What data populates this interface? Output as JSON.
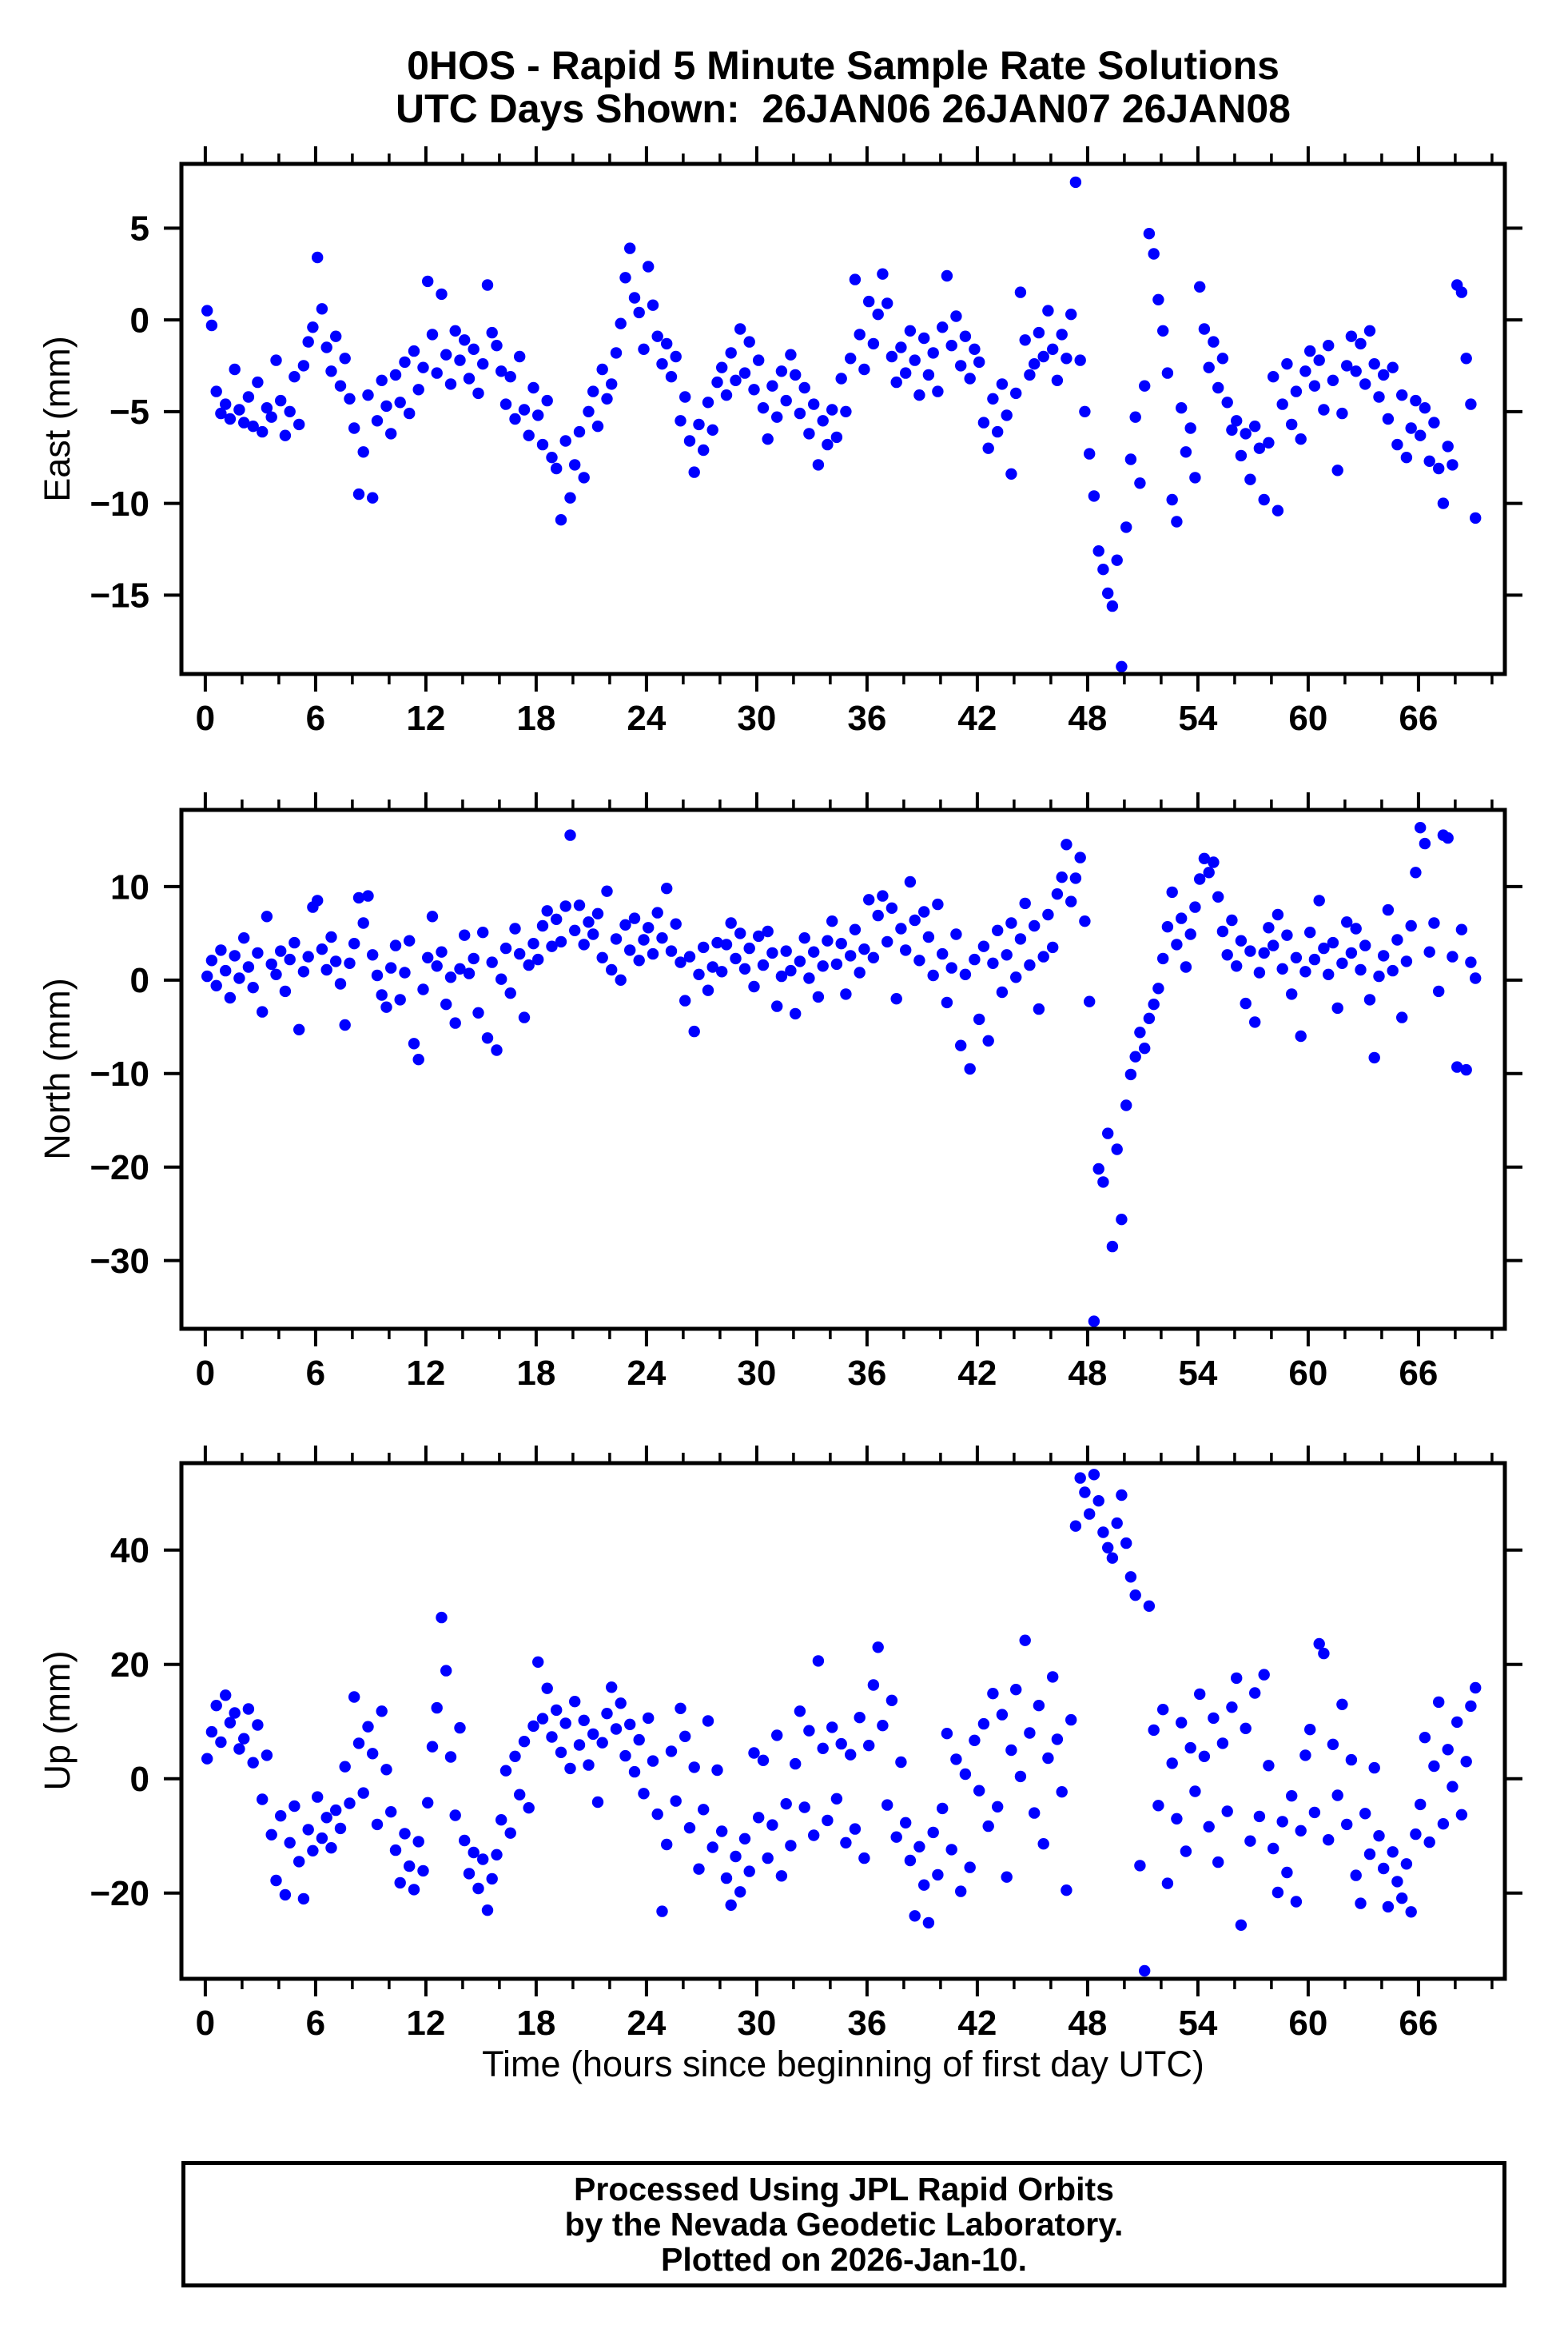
{
  "title": {
    "line1": "0HOS - Rapid 5 Minute Sample Rate Solutions",
    "line2": "UTC Days Shown:  26JAN06 26JAN07 26JAN08"
  },
  "footer": {
    "lines": [
      "Processed Using JPL Rapid Orbits",
      "by the Nevada Geodetic Laboratory.",
      "Plotted on 2026-Jan-10."
    ]
  },
  "style": {
    "marker_color": "#0000ff",
    "axis_color": "#000000",
    "background": "#ffffff"
  },
  "chart_data": {
    "type": "scatter",
    "xlabel": "Time (hours since beginning of first day UTC)",
    "xlim": [
      -1.3,
      70.7
    ],
    "x_major_ticks": [
      0,
      6,
      12,
      18,
      24,
      30,
      36,
      42,
      48,
      54,
      60,
      66
    ],
    "x_minor_step": 2,
    "grid": false,
    "legend": "none",
    "x_start": 0.1,
    "x_step": 0.25,
    "panels": [
      {
        "name": "east",
        "ylabel": "East (mm)",
        "ylim": [
          -19.3,
          8.5
        ],
        "yticks": [
          5,
          0,
          -5,
          -10,
          -15
        ],
        "y": [
          0.5,
          -0.3,
          -3.9,
          -5.1,
          -4.6,
          -5.4,
          -2.7,
          -4.9,
          -5.6,
          -4.2,
          -5.8,
          -3.4,
          -6.1,
          -4.8,
          -5.3,
          -2.2,
          -4.4,
          -6.3,
          -5.0,
          -3.1,
          -5.7,
          -2.5,
          -1.2,
          -0.4,
          3.4,
          0.6,
          -1.5,
          -2.8,
          -0.9,
          -3.6,
          -2.1,
          -4.3,
          -5.9,
          -9.5,
          -7.2,
          -4.1,
          -9.7,
          -5.5,
          -3.3,
          -4.7,
          -6.2,
          -3.0,
          -4.5,
          -2.3,
          -5.1,
          -1.7,
          -3.8,
          -2.6,
          2.1,
          -0.8,
          -2.9,
          1.4,
          -1.9,
          -3.5,
          -0.6,
          -2.2,
          -1.1,
          -3.2,
          -1.6,
          -4.0,
          -2.4,
          1.9,
          -0.7,
          -1.4,
          -2.8,
          -4.6,
          -3.1,
          -5.4,
          -2.0,
          -4.9,
          -6.3,
          -3.7,
          -5.2,
          -6.8,
          -4.4,
          -7.5,
          -8.1,
          -10.9,
          -6.6,
          -9.7,
          -7.9,
          -6.1,
          -8.6,
          -5.0,
          -3.9,
          -5.8,
          -2.7,
          -4.3,
          -3.5,
          -1.8,
          -0.2,
          2.3,
          3.9,
          1.2,
          0.4,
          -1.6,
          2.9,
          0.8,
          -0.9,
          -2.4,
          -1.3,
          -3.1,
          -2.0,
          -5.5,
          -4.2,
          -6.6,
          -8.3,
          -5.7,
          -7.1,
          -4.5,
          -6.0,
          -3.4,
          -2.6,
          -4.1,
          -1.8,
          -3.3,
          -0.5,
          -2.9,
          -1.2,
          -3.8,
          -2.2,
          -4.8,
          -6.5,
          -3.6,
          -5.3,
          -2.8,
          -4.4,
          -1.9,
          -3.0,
          -5.1,
          -3.7,
          -6.2,
          -4.6,
          -7.9,
          -5.5,
          -6.8,
          -4.9,
          -6.4,
          -3.2,
          -5.0,
          -2.1,
          2.2,
          -0.8,
          -2.7,
          1.0,
          -1.3,
          0.3,
          2.5,
          0.9,
          -2.0,
          -3.4,
          -1.5,
          -2.9,
          -0.6,
          -2.2,
          -4.1,
          -1.0,
          -3.0,
          -1.8,
          -3.9,
          -0.4,
          2.4,
          -1.4,
          0.2,
          -2.5,
          -0.9,
          -3.2,
          -1.6,
          -2.3,
          -5.6,
          -7.0,
          -4.3,
          -6.1,
          -3.5,
          -5.2,
          -8.4,
          -4.0,
          1.5,
          -1.1,
          -3.0,
          -2.4,
          -0.7,
          -2.0,
          0.5,
          -1.6,
          -3.3,
          -0.8,
          -2.1,
          0.3,
          7.5,
          -2.2,
          -5.0,
          -7.3,
          -9.6,
          -12.6,
          -13.6,
          -14.9,
          -15.6,
          -13.1,
          -18.9,
          -11.3,
          -7.6,
          -5.3,
          -8.9,
          -3.6,
          4.7,
          3.6,
          1.1,
          -0.6,
          -2.9,
          -9.8,
          -11.0,
          -4.8,
          -7.2,
          -5.9,
          -8.6,
          1.8,
          -0.5,
          -2.6,
          -1.2,
          -3.7,
          -2.1,
          -4.5,
          -6.0,
          -5.5,
          -7.4,
          -6.2,
          -8.7,
          -5.8,
          -7.0,
          -9.8,
          -6.7,
          -3.1,
          -10.4,
          -4.6,
          -2.4,
          -5.7,
          -3.9,
          -6.5,
          -2.8,
          -1.7,
          -3.6,
          -2.2,
          -4.9,
          -1.4,
          -3.3,
          -8.2,
          -5.1,
          -2.5,
          -0.9,
          -2.8,
          -1.3,
          -3.5,
          -0.6,
          -2.4,
          -4.2,
          -3.0,
          -5.4,
          -2.6,
          -6.8,
          -4.1,
          -7.5,
          -5.9,
          -4.4,
          -6.3,
          -4.8,
          -7.7,
          -5.6,
          -8.1,
          -10.0,
          -6.9,
          -7.9,
          1.9,
          1.5,
          -2.1,
          -4.6,
          -10.8
        ]
      },
      {
        "name": "north",
        "ylabel": "North (mm)",
        "ylim": [
          -37.3,
          18.2
        ],
        "yticks": [
          10,
          0,
          -10,
          -20,
          -30
        ],
        "y": [
          0.4,
          2.1,
          -0.6,
          3.2,
          1.0,
          -1.9,
          2.6,
          0.2,
          4.5,
          1.4,
          -0.8,
          2.9,
          -3.4,
          6.8,
          1.7,
          0.6,
          3.1,
          -1.2,
          2.2,
          4.0,
          -5.3,
          0.9,
          2.5,
          7.8,
          8.5,
          3.3,
          1.1,
          4.6,
          2.0,
          -0.4,
          -4.8,
          1.8,
          3.9,
          8.8,
          6.1,
          9.0,
          2.7,
          0.5,
          -1.6,
          -2.9,
          1.3,
          3.7,
          -2.1,
          0.8,
          4.2,
          -6.8,
          -8.5,
          -1.0,
          2.4,
          6.8,
          1.5,
          3.0,
          -2.6,
          0.3,
          -4.6,
          1.2,
          4.8,
          0.7,
          2.3,
          -3.5,
          5.1,
          -6.2,
          1.9,
          -7.5,
          0.1,
          3.4,
          -1.4,
          5.5,
          2.8,
          -4.0,
          1.6,
          3.9,
          2.2,
          5.8,
          7.4,
          3.6,
          6.5,
          4.1,
          7.9,
          15.5,
          5.3,
          8.0,
          3.8,
          6.2,
          4.9,
          7.1,
          2.4,
          9.5,
          1.1,
          4.4,
          0.0,
          5.9,
          3.2,
          6.6,
          2.1,
          4.3,
          5.6,
          2.8,
          7.2,
          4.5,
          9.8,
          3.1,
          6.0,
          1.9,
          -2.2,
          2.5,
          -5.5,
          0.6,
          3.5,
          -1.1,
          1.4,
          4.0,
          0.9,
          3.8,
          6.1,
          2.3,
          5.0,
          1.2,
          3.4,
          -0.7,
          4.7,
          1.6,
          5.2,
          2.9,
          -2.8,
          0.4,
          3.1,
          1.0,
          -3.6,
          2.0,
          4.5,
          0.2,
          3.0,
          -1.8,
          1.5,
          4.2,
          6.3,
          1.7,
          3.9,
          -1.5,
          2.6,
          5.4,
          0.8,
          3.3,
          8.6,
          2.4,
          6.9,
          9.0,
          4.1,
          7.7,
          -2.0,
          5.5,
          3.2,
          10.5,
          6.4,
          2.1,
          7.3,
          4.6,
          0.5,
          8.1,
          2.8,
          -2.4,
          1.3,
          4.9,
          -7.0,
          0.6,
          -9.5,
          2.2,
          -4.2,
          3.6,
          -6.5,
          1.8,
          5.3,
          -1.3,
          2.7,
          6.1,
          0.3,
          4.4,
          8.2,
          1.6,
          5.8,
          -3.1,
          2.5,
          7.0,
          3.5,
          9.2,
          11.0,
          14.5,
          8.4,
          10.9,
          13.1,
          6.3,
          -2.3,
          -36.5,
          -20.2,
          -21.6,
          -16.4,
          -28.5,
          -18.1,
          -25.6,
          -13.4,
          -10.1,
          -8.2,
          -5.6,
          -7.3,
          -4.1,
          -2.6,
          -0.9,
          2.3,
          5.7,
          9.4,
          3.8,
          6.6,
          1.4,
          4.9,
          7.8,
          10.8,
          13.0,
          11.5,
          12.6,
          8.9,
          5.2,
          2.7,
          6.4,
          1.5,
          4.2,
          -2.5,
          3.1,
          -4.5,
          0.8,
          2.9,
          5.6,
          3.7,
          7.0,
          1.2,
          4.8,
          -1.5,
          2.4,
          -6.0,
          0.9,
          5.1,
          2.2,
          8.5,
          3.4,
          0.6,
          4.0,
          -3.0,
          1.8,
          6.2,
          2.9,
          5.5,
          1.1,
          3.7,
          -2.1,
          -8.3,
          0.4,
          2.6,
          7.5,
          1.0,
          4.3,
          -4.0,
          2.0,
          5.8,
          11.5,
          16.3,
          14.6,
          3.0,
          6.1,
          -1.2,
          15.5,
          15.2,
          2.5,
          -9.3,
          5.4,
          -9.6,
          1.9,
          0.2
        ]
      },
      {
        "name": "up",
        "ylabel": "Up (mm)",
        "ylim": [
          -35.0,
          55.2
        ],
        "yticks": [
          40,
          20,
          0,
          -20
        ],
        "y": [
          3.5,
          8.2,
          12.8,
          6.4,
          14.6,
          9.8,
          11.5,
          5.2,
          7.0,
          12.2,
          2.8,
          9.4,
          -3.6,
          4.1,
          -9.8,
          -17.8,
          -6.5,
          -20.3,
          -11.2,
          -4.8,
          -14.5,
          -21.0,
          -8.9,
          -12.6,
          -3.2,
          -10.4,
          -6.8,
          -12.1,
          -5.5,
          -8.7,
          2.1,
          -4.3,
          14.3,
          6.2,
          -2.5,
          9.1,
          4.4,
          -8.0,
          11.8,
          1.6,
          -5.8,
          -12.5,
          -18.2,
          -9.6,
          -15.3,
          -19.4,
          -11.0,
          -16.1,
          -4.2,
          5.6,
          12.4,
          28.2,
          18.9,
          3.8,
          -6.4,
          8.9,
          -10.8,
          -16.6,
          -12.9,
          -19.2,
          -14.1,
          -23.0,
          -17.5,
          -13.3,
          -7.2,
          1.4,
          -9.5,
          3.9,
          -2.8,
          6.5,
          -5.1,
          9.2,
          20.4,
          10.5,
          15.8,
          7.3,
          12.0,
          4.6,
          9.7,
          1.8,
          13.5,
          5.9,
          10.2,
          2.4,
          7.8,
          -4.1,
          6.3,
          11.4,
          16.0,
          8.7,
          13.2,
          4.0,
          9.5,
          1.2,
          6.8,
          -2.6,
          10.6,
          3.1,
          -6.2,
          -23.2,
          -11.5,
          4.8,
          -3.9,
          12.3,
          7.4,
          -8.6,
          2.0,
          -15.8,
          -5.4,
          10.1,
          -12.0,
          1.5,
          -9.2,
          -17.4,
          -22.1,
          -13.6,
          -19.8,
          -10.5,
          -16.2,
          4.5,
          -6.8,
          3.2,
          -13.9,
          -8.1,
          7.6,
          -17.0,
          -4.4,
          -11.7,
          2.6,
          11.8,
          -5.0,
          8.4,
          -9.9,
          20.6,
          5.3,
          -7.3,
          9.0,
          -3.5,
          6.1,
          -11.2,
          4.2,
          -8.8,
          10.7,
          -13.9,
          5.8,
          16.4,
          23.0,
          9.3,
          -4.6,
          13.7,
          -10.2,
          2.9,
          -7.7,
          -14.3,
          -24.0,
          -11.9,
          -18.6,
          -25.2,
          -9.4,
          -16.8,
          -5.2,
          7.9,
          -12.4,
          3.4,
          -19.7,
          0.8,
          -15.5,
          6.7,
          -2.1,
          9.6,
          -8.3,
          14.9,
          -4.9,
          11.2,
          -17.2,
          5.0,
          15.6,
          0.4,
          24.2,
          8.0,
          -6.0,
          12.8,
          -11.4,
          3.6,
          17.8,
          6.9,
          -2.3,
          -19.5,
          10.3,
          44.2,
          52.6,
          50.1,
          46.3,
          53.2,
          48.6,
          43.1,
          40.4,
          38.6,
          44.7,
          49.6,
          41.2,
          35.3,
          32.1,
          -15.2,
          -33.6,
          30.2,
          8.5,
          -4.7,
          12.1,
          -18.3,
          2.7,
          -7.0,
          9.8,
          -12.7,
          5.4,
          -2.2,
          14.8,
          3.9,
          -8.4,
          10.6,
          -14.6,
          6.2,
          -5.7,
          12.5,
          17.6,
          -25.6,
          8.8,
          -10.9,
          15.0,
          -6.6,
          18.2,
          2.3,
          -12.2,
          -19.9,
          -7.5,
          -16.4,
          -3.0,
          -21.5,
          -9.1,
          4.1,
          8.6,
          -5.9,
          23.6,
          21.9,
          -10.7,
          6.0,
          -2.9,
          13.0,
          -8.0,
          3.3,
          -16.9,
          -21.8,
          -6.1,
          -13.2,
          1.9,
          -10.0,
          -15.7,
          -22.4,
          -12.8,
          -18.0,
          -20.9,
          -14.9,
          -23.3,
          -9.7,
          -4.5,
          7.2,
          -11.1,
          2.2,
          13.4,
          -7.9,
          5.1,
          -1.4,
          9.9,
          -6.3,
          3.0,
          12.7,
          15.9
        ]
      }
    ]
  }
}
